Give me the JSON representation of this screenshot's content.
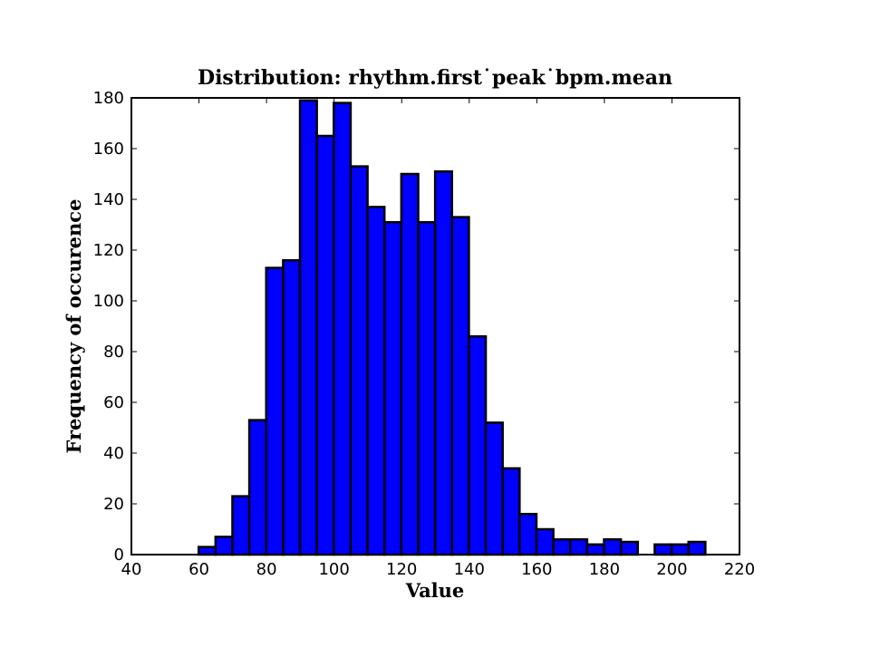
{
  "chart_data": {
    "type": "bar",
    "title": "Distribution: rhythm.first˙peak˙bpm.mean",
    "xlabel": "Value",
    "ylabel": "Frequency of occurence",
    "xlim": [
      40,
      220
    ],
    "ylim": [
      0,
      180
    ],
    "xticks": [
      40,
      60,
      80,
      100,
      120,
      140,
      160,
      180,
      200,
      220
    ],
    "yticks": [
      0,
      20,
      40,
      60,
      80,
      100,
      120,
      140,
      160,
      180
    ],
    "bin_width": 5,
    "bins": [
      {
        "start": 59.9,
        "count": 3
      },
      {
        "start": 64.9,
        "count": 7
      },
      {
        "start": 69.9,
        "count": 23
      },
      {
        "start": 74.9,
        "count": 53
      },
      {
        "start": 79.9,
        "count": 113
      },
      {
        "start": 84.9,
        "count": 116
      },
      {
        "start": 89.9,
        "count": 179
      },
      {
        "start": 94.9,
        "count": 165
      },
      {
        "start": 99.9,
        "count": 178
      },
      {
        "start": 104.9,
        "count": 153
      },
      {
        "start": 109.9,
        "count": 137
      },
      {
        "start": 114.9,
        "count": 131
      },
      {
        "start": 119.9,
        "count": 150
      },
      {
        "start": 124.9,
        "count": 131
      },
      {
        "start": 129.9,
        "count": 151
      },
      {
        "start": 134.9,
        "count": 133
      },
      {
        "start": 139.9,
        "count": 86
      },
      {
        "start": 144.9,
        "count": 52
      },
      {
        "start": 149.9,
        "count": 34
      },
      {
        "start": 154.9,
        "count": 16
      },
      {
        "start": 159.9,
        "count": 10
      },
      {
        "start": 164.9,
        "count": 6
      },
      {
        "start": 169.9,
        "count": 6
      },
      {
        "start": 174.9,
        "count": 4
      },
      {
        "start": 179.9,
        "count": 6
      },
      {
        "start": 184.9,
        "count": 5
      },
      {
        "start": 189.9,
        "count": 0
      },
      {
        "start": 194.9,
        "count": 4
      },
      {
        "start": 199.9,
        "count": 4
      },
      {
        "start": 204.9,
        "count": 5
      }
    ],
    "grid": false,
    "legend": "none",
    "bar_color": "#0000ff",
    "edge_color": "#000000"
  }
}
